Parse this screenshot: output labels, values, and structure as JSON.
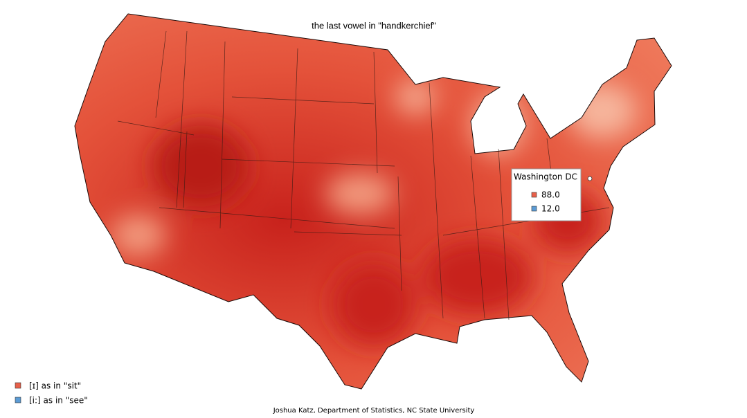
{
  "title": "the last vowel in \"handkerchief\"",
  "tooltip": {
    "title": "Washington DC",
    "rows": [
      "88.0",
      "12.0"
    ]
  },
  "legend": {
    "items": [
      "[ɪ] as in \"sit\"",
      "[i:] as in \"see\""
    ]
  },
  "credit": "Joshua Katz, Department of Statistics, NC State University"
}
